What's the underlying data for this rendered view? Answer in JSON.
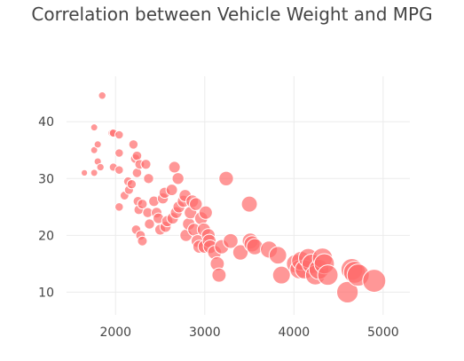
{
  "chart_data": {
    "type": "scatter",
    "title": "Correlation between Vehicle Weight and MPG",
    "xlabel": "",
    "ylabel": "",
    "xlim": [
      1450,
      5300
    ],
    "ylim": [
      6,
      48
    ],
    "x_ticks": [
      2000,
      3000,
      4000,
      5000
    ],
    "y_ticks": [
      10,
      20,
      30,
      40
    ],
    "grid": true,
    "marker_color": "#ff6b6b",
    "marker_opacity": 0.7,
    "marker_outline": "#ffffff",
    "size_encoding": "marker area grows with vehicle weight",
    "points": [
      {
        "x": 1650,
        "y": 31
      },
      {
        "x": 1760,
        "y": 39
      },
      {
        "x": 1760,
        "y": 35
      },
      {
        "x": 1760,
        "y": 31
      },
      {
        "x": 1800,
        "y": 36
      },
      {
        "x": 1800,
        "y": 33
      },
      {
        "x": 1830,
        "y": 32
      },
      {
        "x": 1850,
        "y": 44.6
      },
      {
        "x": 1960,
        "y": 38
      },
      {
        "x": 1975,
        "y": 38
      },
      {
        "x": 1975,
        "y": 32
      },
      {
        "x": 2040,
        "y": 37.7
      },
      {
        "x": 2040,
        "y": 34.5
      },
      {
        "x": 2040,
        "y": 31.5
      },
      {
        "x": 2040,
        "y": 25
      },
      {
        "x": 2100,
        "y": 27
      },
      {
        "x": 2140,
        "y": 29.5
      },
      {
        "x": 2150,
        "y": 28
      },
      {
        "x": 2180,
        "y": 29
      },
      {
        "x": 2200,
        "y": 36
      },
      {
        "x": 2220,
        "y": 33.5
      },
      {
        "x": 2230,
        "y": 21
      },
      {
        "x": 2240,
        "y": 34
      },
      {
        "x": 2240,
        "y": 31
      },
      {
        "x": 2250,
        "y": 26
      },
      {
        "x": 2260,
        "y": 24.5
      },
      {
        "x": 2270,
        "y": 32.5
      },
      {
        "x": 2280,
        "y": 20
      },
      {
        "x": 2300,
        "y": 25.5
      },
      {
        "x": 2300,
        "y": 19
      },
      {
        "x": 2340,
        "y": 32.5
      },
      {
        "x": 2360,
        "y": 24
      },
      {
        "x": 2370,
        "y": 30
      },
      {
        "x": 2380,
        "y": 22
      },
      {
        "x": 2430,
        "y": 26
      },
      {
        "x": 2460,
        "y": 24
      },
      {
        "x": 2480,
        "y": 23
      },
      {
        "x": 2500,
        "y": 21
      },
      {
        "x": 2530,
        "y": 26.5
      },
      {
        "x": 2550,
        "y": 27.5
      },
      {
        "x": 2560,
        "y": 21.5
      },
      {
        "x": 2580,
        "y": 22.5
      },
      {
        "x": 2630,
        "y": 28
      },
      {
        "x": 2640,
        "y": 23
      },
      {
        "x": 2660,
        "y": 32
      },
      {
        "x": 2680,
        "y": 24
      },
      {
        "x": 2700,
        "y": 30
      },
      {
        "x": 2710,
        "y": 25
      },
      {
        "x": 2760,
        "y": 26
      },
      {
        "x": 2780,
        "y": 27
      },
      {
        "x": 2790,
        "y": 20
      },
      {
        "x": 2820,
        "y": 22
      },
      {
        "x": 2840,
        "y": 24
      },
      {
        "x": 2860,
        "y": 26
      },
      {
        "x": 2880,
        "y": 21
      },
      {
        "x": 2900,
        "y": 25.5
      },
      {
        "x": 2920,
        "y": 19
      },
      {
        "x": 2940,
        "y": 18
      },
      {
        "x": 2960,
        "y": 23
      },
      {
        "x": 2990,
        "y": 21
      },
      {
        "x": 3000,
        "y": 18
      },
      {
        "x": 3010,
        "y": 24
      },
      {
        "x": 3040,
        "y": 20
      },
      {
        "x": 3050,
        "y": 19
      },
      {
        "x": 3060,
        "y": 18
      },
      {
        "x": 3110,
        "y": 17
      },
      {
        "x": 3140,
        "y": 15
      },
      {
        "x": 3160,
        "y": 13
      },
      {
        "x": 3190,
        "y": 18
      },
      {
        "x": 3240,
        "y": 30
      },
      {
        "x": 3290,
        "y": 19
      },
      {
        "x": 3400,
        "y": 17
      },
      {
        "x": 3500,
        "y": 25.5
      },
      {
        "x": 3510,
        "y": 19
      },
      {
        "x": 3530,
        "y": 18.5
      },
      {
        "x": 3560,
        "y": 18
      },
      {
        "x": 3720,
        "y": 17.5
      },
      {
        "x": 3820,
        "y": 16.5
      },
      {
        "x": 3860,
        "y": 13
      },
      {
        "x": 4020,
        "y": 15
      },
      {
        "x": 4060,
        "y": 14
      },
      {
        "x": 4080,
        "y": 15.5
      },
      {
        "x": 4120,
        "y": 14
      },
      {
        "x": 4160,
        "y": 16
      },
      {
        "x": 4200,
        "y": 15
      },
      {
        "x": 4240,
        "y": 13
      },
      {
        "x": 4280,
        "y": 14
      },
      {
        "x": 4320,
        "y": 16
      },
      {
        "x": 4340,
        "y": 15
      },
      {
        "x": 4380,
        "y": 13
      },
      {
        "x": 4600,
        "y": 10
      },
      {
        "x": 4650,
        "y": 14
      },
      {
        "x": 4680,
        "y": 13.5
      },
      {
        "x": 4720,
        "y": 13
      },
      {
        "x": 4900,
        "y": 12
      }
    ]
  }
}
